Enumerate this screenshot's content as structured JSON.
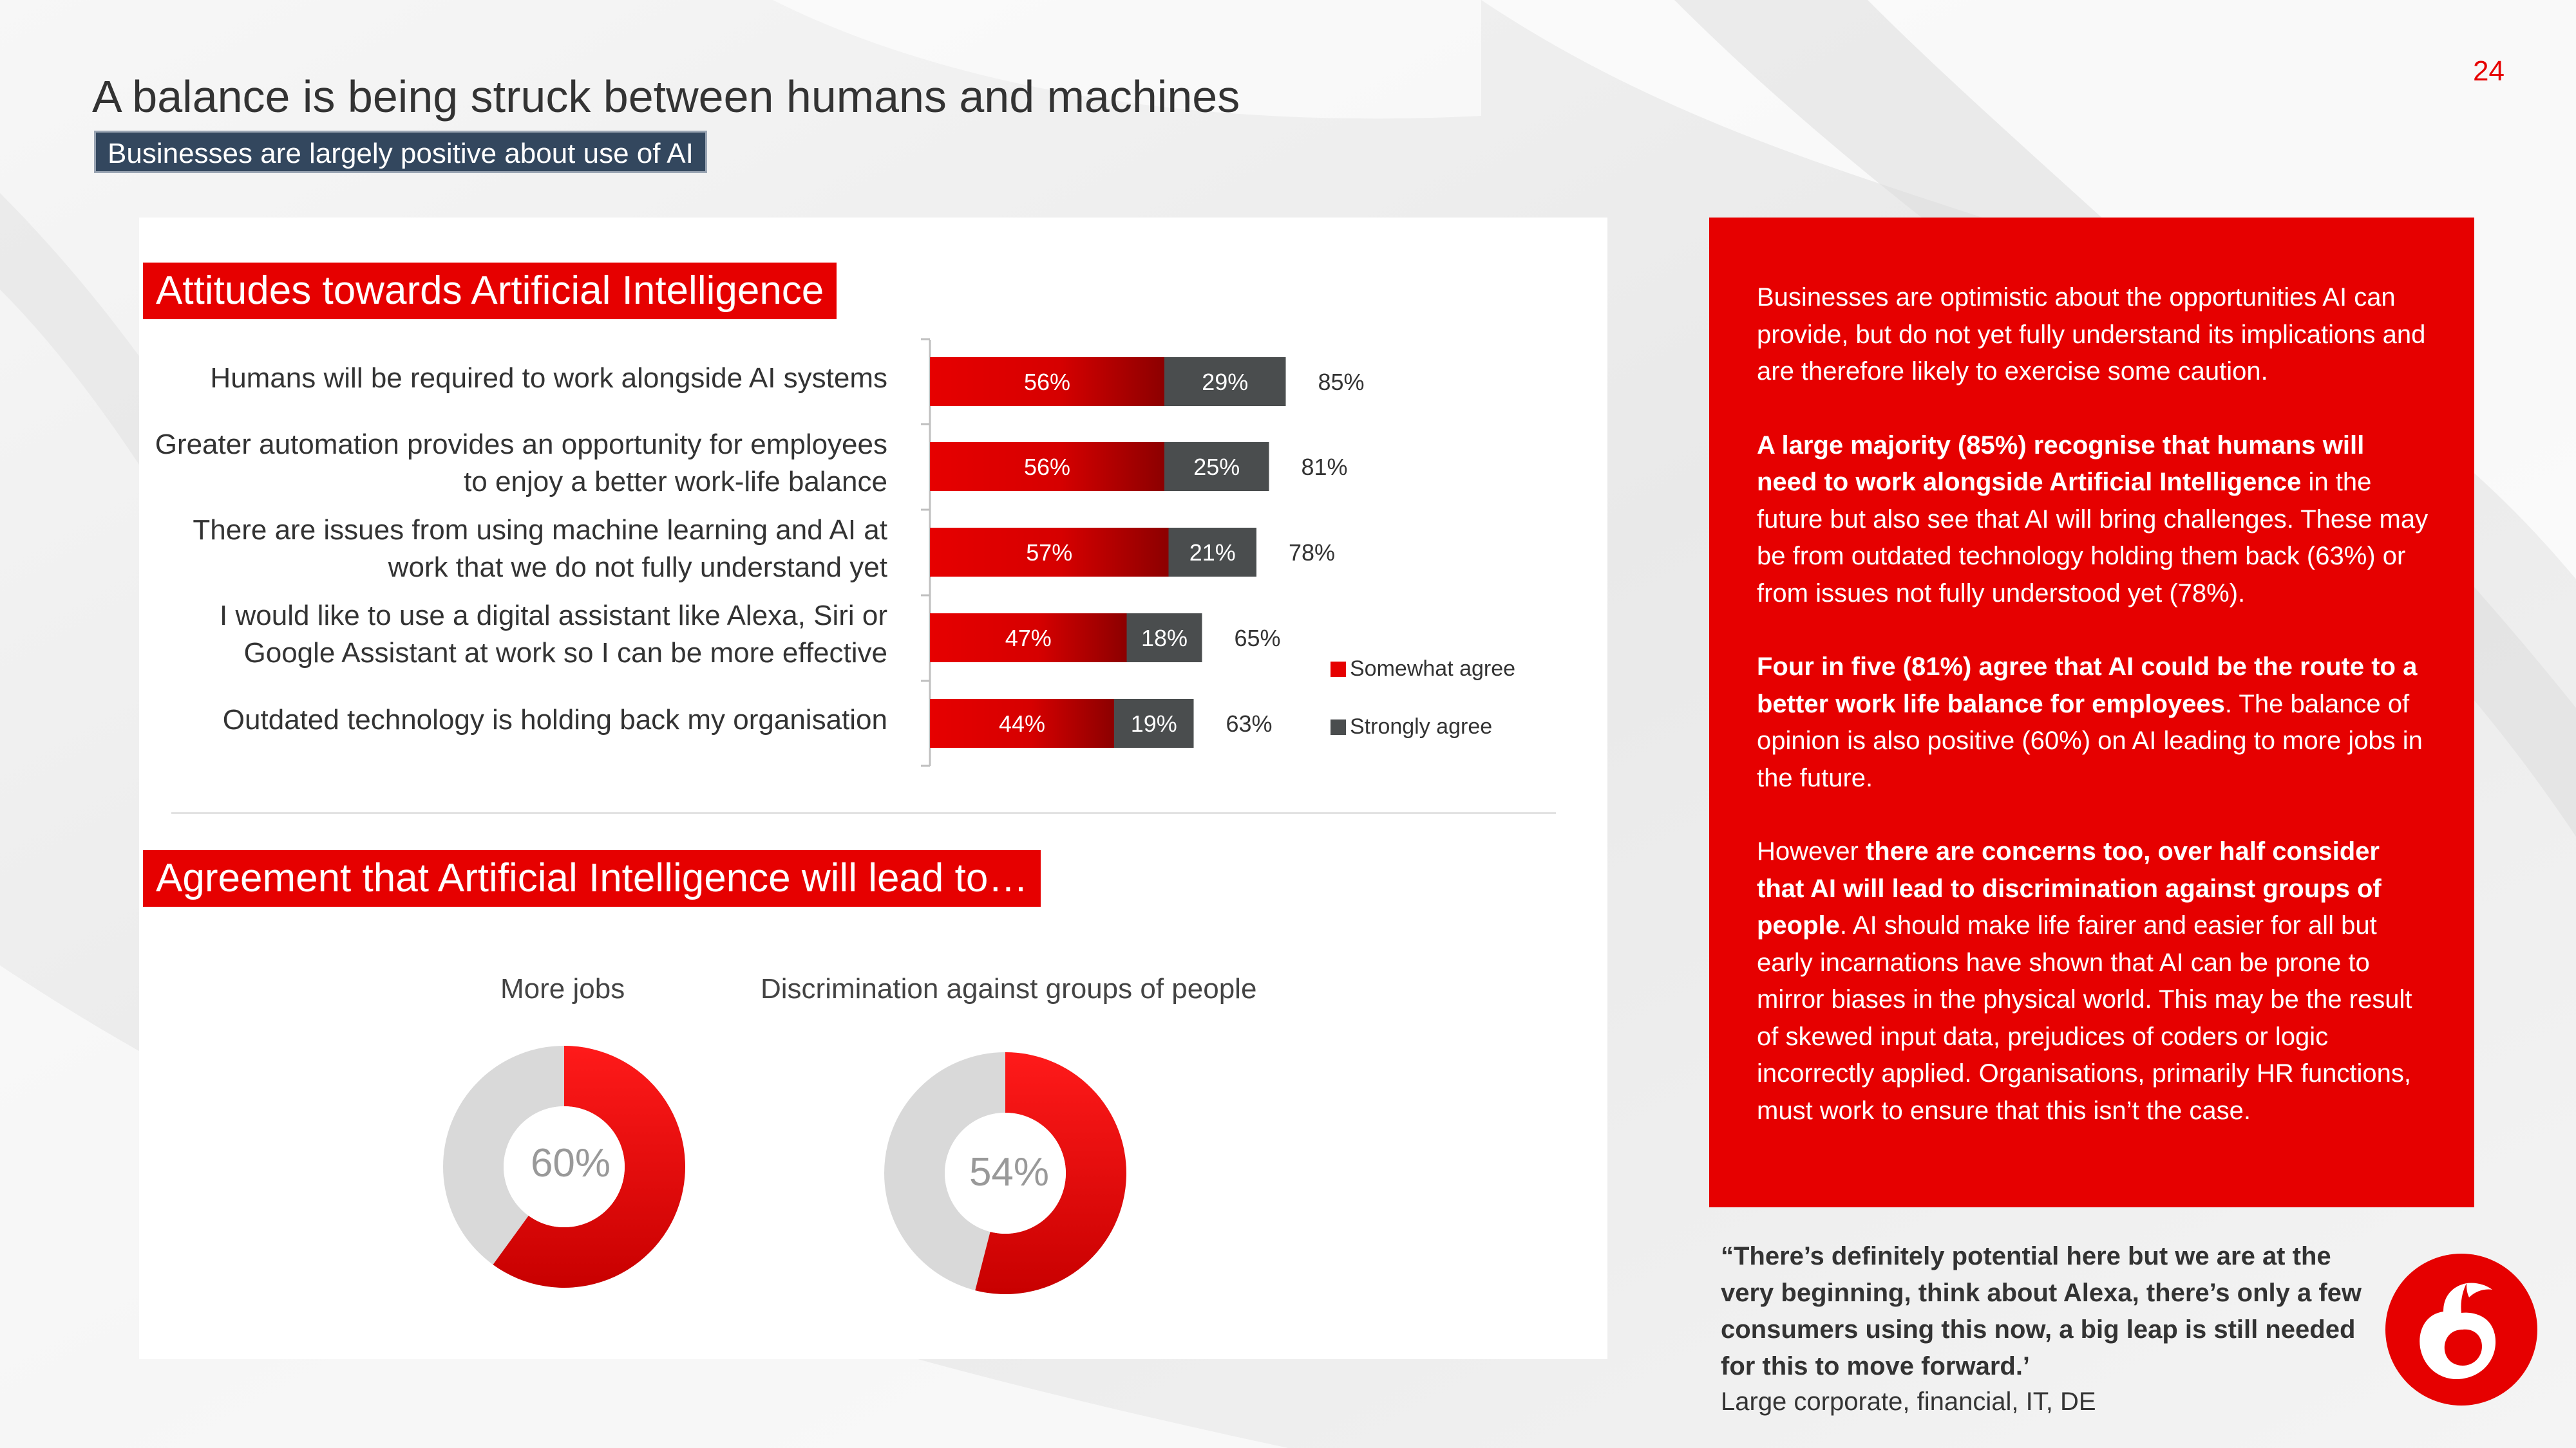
{
  "page": {
    "number": "24",
    "title": "A balance is being struck between humans and machines",
    "subtitle": "Businesses are largely positive about use of AI"
  },
  "colors": {
    "brand_red": "#e60000",
    "dark_red": "#8c0000",
    "strongly_grey": "#4a4d4e",
    "donut_grey": "#d9d9d9"
  },
  "sections": {
    "attitudes_title": "Attitudes towards Artificial Intelligence",
    "agreement_title": "Agreement that Artificial Intelligence will lead to…"
  },
  "chart_data": [
    {
      "type": "bar",
      "orientation": "horizontal",
      "stacked": true,
      "title": "Attitudes towards Artificial Intelligence",
      "categories": [
        [
          "Humans will be required to work alongside AI systems"
        ],
        [
          "Greater automation provides an opportunity for employees",
          "to enjoy a better work-life balance"
        ],
        [
          "There are issues from using machine learning and AI at",
          "work that we do not fully understand yet"
        ],
        [
          "I would like to use a digital assistant like Alexa, Siri or",
          "Google Assistant at work so I can be more effective"
        ],
        [
          "Outdated technology is holding back my organisation"
        ]
      ],
      "series": [
        {
          "name": "Somewhat agree",
          "values": [
            56,
            56,
            57,
            47,
            44
          ],
          "labels": [
            "56%",
            "56%",
            "57%",
            "47%",
            "44%"
          ]
        },
        {
          "name": "Strongly agree",
          "values": [
            29,
            25,
            21,
            18,
            19
          ],
          "labels": [
            "29%",
            "25%",
            "21%",
            "18%",
            "19%"
          ]
        }
      ],
      "totals": [
        "85%",
        "81%",
        "78%",
        "65%",
        "63%"
      ],
      "xlim": [
        0,
        100
      ],
      "legend": "right"
    },
    {
      "type": "pie",
      "variant": "donut",
      "title": "More jobs",
      "value": 60,
      "label": "60%"
    },
    {
      "type": "pie",
      "variant": "donut",
      "title": "Discrimination against groups of people",
      "value": 54,
      "label": "54%"
    }
  ],
  "red_box": {
    "paragraphs": [
      [
        {
          "text": "Businesses are optimistic about the opportunities AI can provide, but do not yet fully understand its implications and are therefore likely to exercise some caution.",
          "bold": false
        }
      ],
      [
        {
          "text": "A large majority (85%) recognise that humans will need to work alongside Artificial Intelligence",
          "bold": true
        },
        {
          "text": " in the future but also see that AI will bring challenges.  These may be from outdated technology holding them back (63%) or from issues not fully understood yet (78%).",
          "bold": false
        }
      ],
      [
        {
          "text": "Four in five (81%) agree that AI could be the route to a better work life balance for employees",
          "bold": true
        },
        {
          "text": ".  The balance of opinion is also positive (60%) on AI leading to more jobs in the future.",
          "bold": false
        }
      ],
      [
        {
          "text": "However ",
          "bold": false
        },
        {
          "text": "there are concerns too, over half consider that AI will lead to discrimination against groups of people",
          "bold": true
        },
        {
          "text": ".  AI should make life fairer and easier for all but early incarnations have shown that AI can be prone to mirror biases in the physical world.  This may be the result of skewed input data, prejudices of coders or logic incorrectly applied.  Organisations, primarily HR functions, must work to ensure that this isn’t the case.",
          "bold": false
        }
      ]
    ]
  },
  "quote": {
    "text": "“There’s definitely potential here but we are at the very beginning, think about Alexa, there’s only a few consumers using this now, a big leap is still needed for this to move forward.’",
    "source": "Large corporate, financial, IT, DE"
  },
  "icons": {
    "logo": "vodafone-speechmark-logo"
  }
}
